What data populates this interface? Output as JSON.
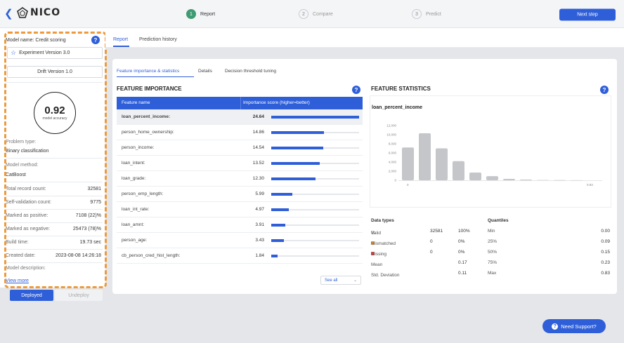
{
  "header": {
    "brand": "NICO",
    "steps": [
      {
        "num": "1",
        "label": "Report"
      },
      {
        "num": "2",
        "label": "Compare"
      },
      {
        "num": "3",
        "label": "Predict"
      }
    ],
    "next_button": "Next step"
  },
  "tabs": [
    "Report",
    "Prediction history"
  ],
  "sidebar": {
    "model_name": "Model name: Credit scoring",
    "experiment": "Experiment Version 3.0",
    "drift": "Drift Version 1.0",
    "accuracy_value": "0.92",
    "accuracy_label": "model accuracy",
    "problem_type_label": "Problem type:",
    "problem_type": "Binary classification",
    "model_method_label": "Model method:",
    "model_method": "CatBoost",
    "stats": [
      {
        "k": "Total record count:",
        "v": "32581"
      },
      {
        "k": "Self-validation count:",
        "v": "9775"
      },
      {
        "k": "Marked as positive:",
        "v": "7108 (22)%"
      },
      {
        "k": "Marked as negative:",
        "v": "25473 (78)%"
      },
      {
        "k": "Build time:",
        "v": "19.73 sec"
      },
      {
        "k": "Created date:",
        "v": "2023-08-08 14:26:18"
      }
    ],
    "model_description_label": "Model description:",
    "view_more": "View more",
    "deployed": "Deployed",
    "undeploy": "Undeploy"
  },
  "subtabs": [
    "Feature importance & statistics",
    "Details",
    "Decision threshold tuning"
  ],
  "feature_importance": {
    "title": "FEATURE IMPORTANCE",
    "col_name": "Feature name",
    "col_score": "Importance score (higher=better)",
    "rows": [
      {
        "name": "loan_percent_income:",
        "value": "24.64",
        "frac": 1.0
      },
      {
        "name": "person_home_ownership:",
        "value": "14.86",
        "frac": 0.6
      },
      {
        "name": "person_income:",
        "value": "14.54",
        "frac": 0.59
      },
      {
        "name": "loan_intent:",
        "value": "13.52",
        "frac": 0.55
      },
      {
        "name": "loan_grade:",
        "value": "12.30",
        "frac": 0.5
      },
      {
        "name": "person_emp_length:",
        "value": "5.99",
        "frac": 0.24
      },
      {
        "name": "loan_int_rate:",
        "value": "4.97",
        "frac": 0.2
      },
      {
        "name": "loan_amnt:",
        "value": "3.91",
        "frac": 0.16
      },
      {
        "name": "person_age:",
        "value": "3.43",
        "frac": 0.14
      },
      {
        "name": "cb_person_cred_hist_length:",
        "value": "1.84",
        "frac": 0.07
      }
    ],
    "see_all": "See all"
  },
  "feature_statistics": {
    "title": "FEATURE STATISTICS",
    "feature": "loan_percent_income",
    "headers": {
      "data_types": "Data types",
      "quantiles": "Quantiles"
    },
    "rows": [
      {
        "t": "Valid",
        "n": "32581",
        "p": "100%",
        "q": "Min",
        "qv": "0.00",
        "color": "#c9ccd1"
      },
      {
        "t": "Mismatched",
        "n": "0",
        "p": "0%",
        "q": "25%",
        "qv": "0.09",
        "color": "#ec9a3c"
      },
      {
        "t": "Missing",
        "n": "0",
        "p": "0%",
        "q": "50%",
        "qv": "0.15",
        "color": "#d84a4a"
      },
      {
        "t": "Mean",
        "n": "",
        "p": "0.17",
        "q": "75%",
        "qv": "0.23",
        "color": ""
      },
      {
        "t": "Std. Deviation",
        "n": "",
        "p": "0.11",
        "q": "Max",
        "qv": "0.83",
        "color": ""
      }
    ]
  },
  "chart_data": {
    "type": "bar",
    "title": "loan_percent_income",
    "xlabel": "",
    "ylabel": "",
    "x_tick_labels": [
      "0",
      "0.83"
    ],
    "y_ticks": [
      "0",
      "2,000",
      "4,000",
      "6,000",
      "8,000",
      "10,000",
      "12,000"
    ],
    "ylim": [
      0,
      12000
    ],
    "values": [
      7200,
      10300,
      7000,
      4200,
      1700,
      900,
      300,
      150,
      60,
      30,
      15
    ],
    "bar_color": "#c4c6ca"
  },
  "support_button": "Need Support?"
}
